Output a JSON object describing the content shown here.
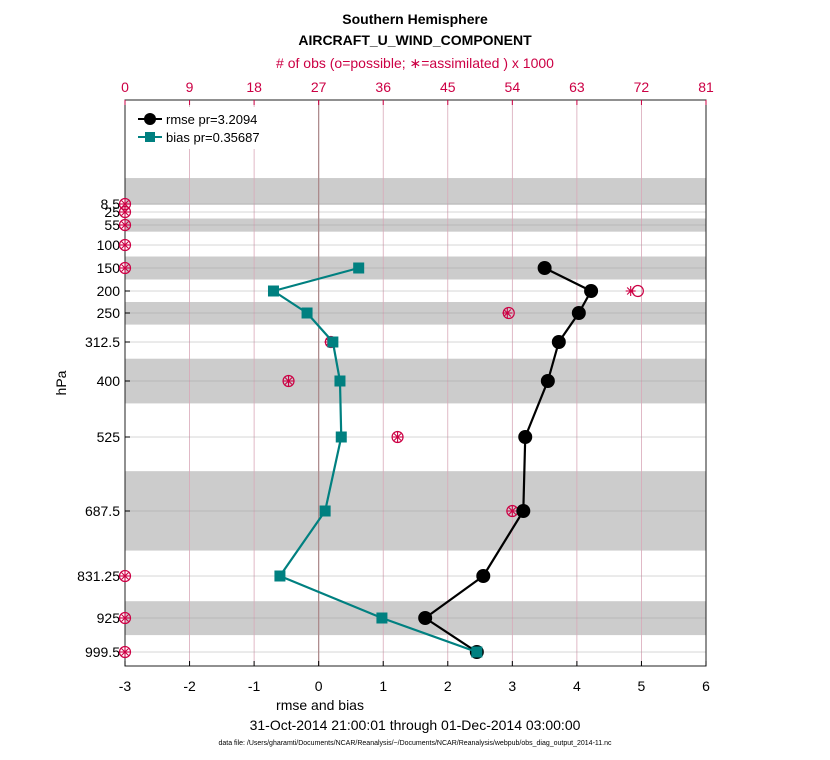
{
  "chart_data": {
    "type": "line",
    "title": "Southern Hemisphere",
    "subtitle": "AIRCRAFT_U_WIND_COMPONENT",
    "top_axis_label": "# of obs (o=possible; ∗=assimilated ) x 1000",
    "xlabel": "rmse and bias",
    "ylabel": "hPa",
    "date_range": "31-Oct-2014 21:00:01 through 01-Dec-2014 03:00:00",
    "footnote": "data file: /Users/gharamti/Documents/NCAR/Reanalysis/~/Documents/NCAR/Reanalysis/webpub/obs_diag_output_2014-11.nc",
    "xlim": [
      -3,
      6
    ],
    "x_ticks": [
      "-3",
      "-2",
      "-1",
      "0",
      "1",
      "2",
      "3",
      "4",
      "5",
      "6"
    ],
    "top_xlim": [
      0,
      81
    ],
    "top_ticks": [
      "0",
      "9",
      "18",
      "27",
      "36",
      "45",
      "54",
      "63",
      "72",
      "81"
    ],
    "levels": [
      8.5,
      25,
      55,
      100,
      150,
      200,
      250,
      312.5,
      400,
      525,
      687.5,
      831.25,
      925,
      999.5
    ],
    "level_labels": [
      "8.5",
      "25",
      "55",
      "100",
      "150",
      "200",
      "250",
      "312.5",
      "400",
      "525",
      "687.5",
      "831.25",
      "925",
      "999.5"
    ],
    "legend_position": "top-left",
    "grid": true,
    "series": [
      {
        "name": "rmse pr=3.2094",
        "color": "#000000",
        "marker": "circle",
        "points": [
          {
            "level": 150,
            "value": 3.5
          },
          {
            "level": 200,
            "value": 4.22
          },
          {
            "level": 250,
            "value": 4.03
          },
          {
            "level": 312.5,
            "value": 3.72
          },
          {
            "level": 400,
            "value": 3.55
          },
          {
            "level": 525,
            "value": 3.2
          },
          {
            "level": 687.5,
            "value": 3.17
          },
          {
            "level": 831.25,
            "value": 2.55
          },
          {
            "level": 925,
            "value": 1.65
          },
          {
            "level": 999.5,
            "value": 2.45
          }
        ]
      },
      {
        "name": "bias pr=0.35687",
        "color": "#008080",
        "marker": "square",
        "points": [
          {
            "level": 150,
            "value": 0.62
          },
          {
            "level": 200,
            "value": -0.7
          },
          {
            "level": 250,
            "value": -0.18
          },
          {
            "level": 312.5,
            "value": 0.22
          },
          {
            "level": 400,
            "value": 0.33
          },
          {
            "level": 525,
            "value": 0.35
          },
          {
            "level": 687.5,
            "value": 0.1
          },
          {
            "level": 831.25,
            "value": -0.6
          },
          {
            "level": 925,
            "value": 0.98
          },
          {
            "level": 999.5,
            "value": 2.45
          }
        ]
      }
    ],
    "obs_counts": {
      "color": "#cc0044",
      "possible": [
        {
          "level": 8.5,
          "count": 0
        },
        {
          "level": 25,
          "count": 0
        },
        {
          "level": 55,
          "count": 0
        },
        {
          "level": 100,
          "count": 0
        },
        {
          "level": 150,
          "count": 0
        },
        {
          "level": 200,
          "count": 71.5
        },
        {
          "level": 250,
          "count": 53.5
        },
        {
          "level": 312.5,
          "count": 28.7
        },
        {
          "level": 400,
          "count": 22.8
        },
        {
          "level": 525,
          "count": 38
        },
        {
          "level": 687.5,
          "count": 54
        },
        {
          "level": 831.25,
          "count": 0
        },
        {
          "level": 925,
          "count": 0
        },
        {
          "level": 999.5,
          "count": 0
        }
      ],
      "assimilated": [
        {
          "level": 8.5,
          "count": 0
        },
        {
          "level": 25,
          "count": 0
        },
        {
          "level": 55,
          "count": 0
        },
        {
          "level": 100,
          "count": 0
        },
        {
          "level": 150,
          "count": 0
        },
        {
          "level": 200,
          "count": 70.5
        },
        {
          "level": 250,
          "count": 53.3
        },
        {
          "level": 312.5,
          "count": 28.5
        },
        {
          "level": 400,
          "count": 22.8
        },
        {
          "level": 525,
          "count": 38
        },
        {
          "level": 687.5,
          "count": 54
        },
        {
          "level": 831.25,
          "count": 0
        },
        {
          "level": 925,
          "count": 0
        },
        {
          "level": 999.5,
          "count": 0
        }
      ]
    },
    "bands": [
      {
        "from": 5,
        "to": 10
      },
      {
        "from": 40,
        "to": 70
      },
      {
        "from": 125,
        "to": 175
      },
      {
        "from": 225,
        "to": 275
      },
      {
        "from": 350,
        "to": 450
      },
      {
        "from": 600,
        "to": 775
      },
      {
        "from": 887.5,
        "to": 962.5
      }
    ]
  }
}
